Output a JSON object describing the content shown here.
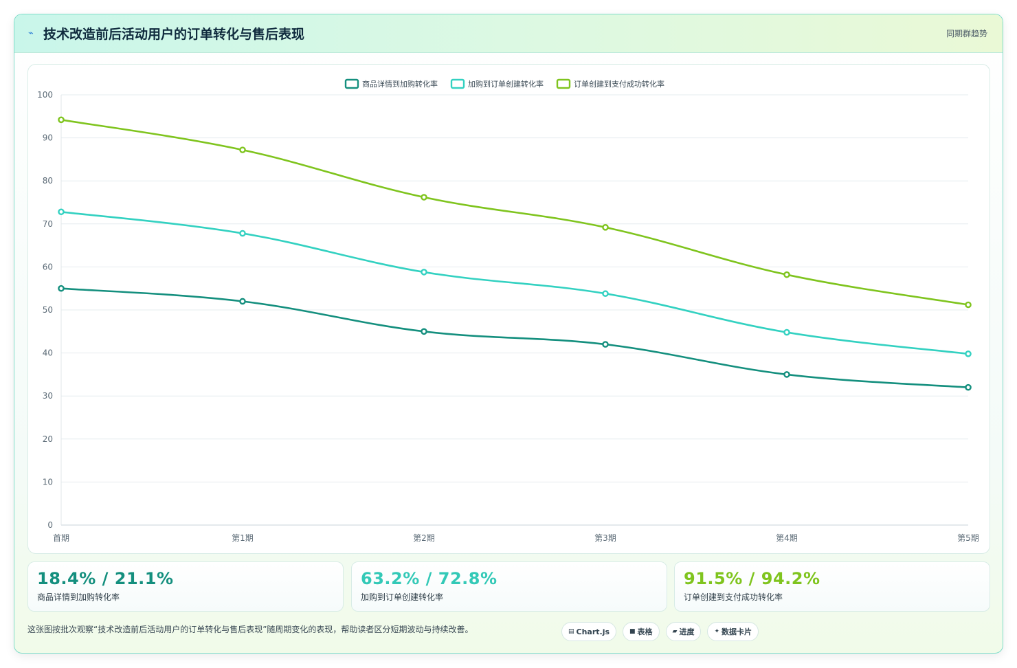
{
  "header": {
    "icon": "trend-line-icon",
    "title": "技术改造前后活动用户的订单转化与售后表现",
    "badge": "同期群趋势"
  },
  "chart_data": {
    "type": "line",
    "title": "",
    "xlabel": "",
    "ylabel": "",
    "categories": [
      "首期",
      "第1期",
      "第2期",
      "第3期",
      "第4期",
      "第5期"
    ],
    "ylim": [
      0,
      100
    ],
    "yticks": [
      0,
      10,
      20,
      30,
      40,
      50,
      60,
      70,
      80,
      90,
      100
    ],
    "grid": true,
    "legend_position": "top-center",
    "series": [
      {
        "name": "商品详情到加购转化率",
        "color": "#148f7e",
        "values": [
          55.0,
          52.0,
          45.0,
          42.0,
          35.0,
          32.0
        ]
      },
      {
        "name": "加购到订单创建转化率",
        "color": "#33d1c1",
        "values": [
          72.8,
          67.8,
          58.8,
          53.8,
          44.8,
          39.8
        ]
      },
      {
        "name": "订单创建到支付成功转化率",
        "color": "#7fc41e",
        "values": [
          94.2,
          87.2,
          76.2,
          69.2,
          58.2,
          51.2
        ]
      }
    ]
  },
  "stats": [
    {
      "value": "18.4% / 21.1%",
      "label": "商品详情到加购转化率",
      "color": "#148f7e"
    },
    {
      "value": "63.2% / 72.8%",
      "label": "加购到订单创建转化率",
      "color": "#33c9b7"
    },
    {
      "value": "91.5% / 94.2%",
      "label": "订单创建到支付成功转化率",
      "color": "#7fc41e"
    }
  ],
  "footer": {
    "text": "这张图按批次观察“技术改造前后活动用户的订单转化与售后表现”随周期变化的表现，帮助读者区分短期波动与持续改善。",
    "pills": [
      {
        "icon": "chart-icon",
        "glyph": "▤",
        "label": "Chart.js"
      },
      {
        "icon": "table-icon",
        "glyph": "■",
        "label": "表格"
      },
      {
        "icon": "progress-icon",
        "glyph": "▰",
        "label": "进度"
      },
      {
        "icon": "sparkle-icon",
        "glyph": "✦",
        "label": "数据卡片"
      }
    ]
  }
}
